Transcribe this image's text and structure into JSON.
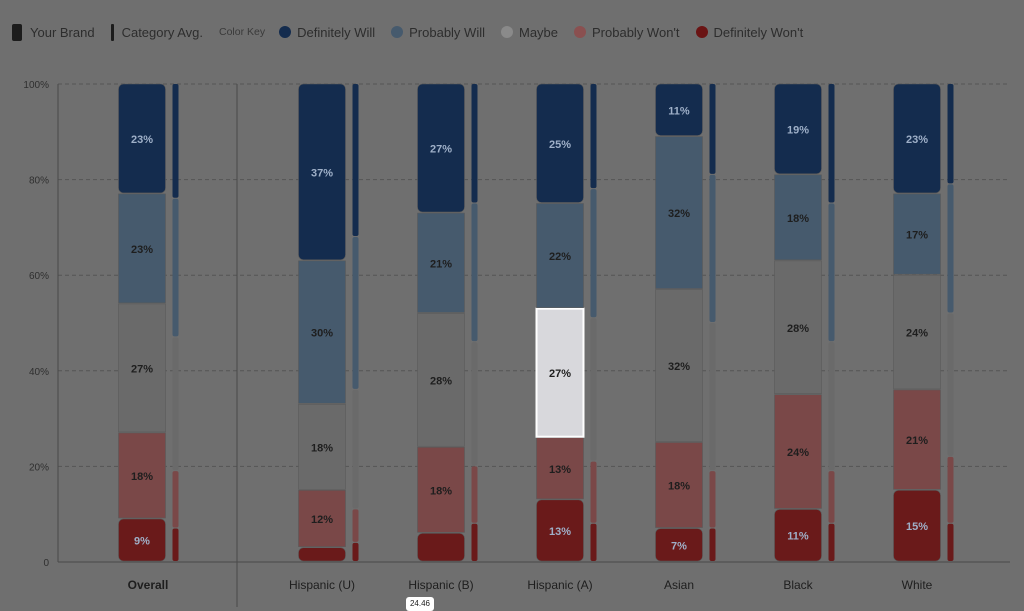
{
  "legend": {
    "your_brand": "Your Brand",
    "category_avg": "Category Avg.",
    "color_key": "Color Key",
    "definitely_will": "Definitely Will",
    "probably_will": "Probably Will",
    "maybe": "Maybe",
    "probably_wont": "Probably Won't",
    "definitely_wont": "Definitely Won't"
  },
  "colors": {
    "definitely_will": "#142c4e",
    "probably_will": "#465a6d",
    "maybe": "#6a6a6a",
    "probably_wont": "#7a4848",
    "definitely_wont": "#6a1a1a",
    "highlight": "#d8d8dc"
  },
  "tooltip_value": "24.46",
  "chart_data": {
    "type": "bar",
    "stacked": true,
    "ylim": [
      0,
      100
    ],
    "y_ticks": [
      "0",
      "20%",
      "40%",
      "60%",
      "80%",
      "100%"
    ],
    "grid": true,
    "categories": [
      "Overall",
      "Hispanic (U)",
      "Hispanic (B)",
      "Hispanic (A)",
      "Asian",
      "Black",
      "White"
    ],
    "series": [
      {
        "name": "Definitely Won't",
        "values": [
          9,
          3,
          6,
          13,
          7,
          11,
          15
        ],
        "labels": [
          "9%",
          "",
          "",
          "13%",
          "7%",
          "11%",
          "15%"
        ]
      },
      {
        "name": "Probably Won't",
        "values": [
          18,
          12,
          18,
          13,
          18,
          24,
          21
        ],
        "labels": [
          "18%",
          "12%",
          "18%",
          "13%",
          "18%",
          "24%",
          "21%"
        ]
      },
      {
        "name": "Maybe",
        "values": [
          27,
          18,
          28,
          27,
          32,
          28,
          24
        ],
        "labels": [
          "27%",
          "18%",
          "28%",
          "27%",
          "32%",
          "28%",
          "24%"
        ]
      },
      {
        "name": "Probably Will",
        "values": [
          23,
          30,
          21,
          22,
          32,
          18,
          17
        ],
        "labels": [
          "23%",
          "30%",
          "21%",
          "22%",
          "32%",
          "18%",
          "17%"
        ]
      },
      {
        "name": "Definitely Will",
        "values": [
          23,
          37,
          27,
          25,
          11,
          19,
          23
        ],
        "labels": [
          "23%",
          "37%",
          "27%",
          "25%",
          "11%",
          "19%",
          "23%"
        ]
      }
    ],
    "category_avg": [
      {
        "name": "Definitely Won't",
        "values": [
          7,
          4,
          8,
          8,
          7,
          8,
          8
        ]
      },
      {
        "name": "Probably Won't",
        "values": [
          12,
          7,
          12,
          13,
          12,
          11,
          14
        ]
      },
      {
        "name": "Maybe",
        "values": [
          28,
          25,
          26,
          30,
          31,
          27,
          30
        ]
      },
      {
        "name": "Probably Will",
        "values": [
          29,
          32,
          29,
          27,
          31,
          29,
          27
        ]
      },
      {
        "name": "Definitely Will",
        "values": [
          24,
          32,
          25,
          22,
          19,
          25,
          21
        ]
      }
    ],
    "highlighted": {
      "category": "Hispanic (A)",
      "series": "Maybe"
    }
  }
}
